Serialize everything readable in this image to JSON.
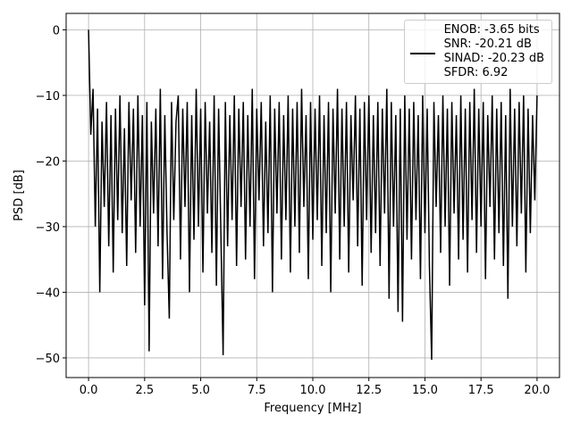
{
  "chart_data": {
    "type": "line",
    "x_label": "Frequency [MHz]",
    "y_label": "PSD [dB]",
    "xlim": [
      -1,
      21
    ],
    "ylim": [
      -53,
      2.5
    ],
    "xticks": [
      {
        "value": 0,
        "label": "0.0"
      },
      {
        "value": 2.5,
        "label": "2.5"
      },
      {
        "value": 5,
        "label": "5.0"
      },
      {
        "value": 7.5,
        "label": "7.5"
      },
      {
        "value": 10,
        "label": "10.0"
      },
      {
        "value": 12.5,
        "label": "12.5"
      },
      {
        "value": 15,
        "label": "15.0"
      },
      {
        "value": 17.5,
        "label": "17.5"
      },
      {
        "value": 20,
        "label": "20.0"
      }
    ],
    "yticks": [
      {
        "value": -50,
        "label": "−50"
      },
      {
        "value": -40,
        "label": "−40"
      },
      {
        "value": -30,
        "label": "−30"
      },
      {
        "value": -20,
        "label": "−20"
      },
      {
        "value": -10,
        "label": "−10"
      },
      0
    ],
    "grid": true,
    "legend": "upper right",
    "x": [
      0,
      0.1,
      0.2,
      0.3,
      0.4,
      0.5,
      0.6,
      0.7,
      0.8,
      0.9,
      1,
      1.1,
      1.2,
      1.3,
      1.4,
      1.5,
      1.6,
      1.7,
      1.8,
      1.9,
      2,
      2.1,
      2.2,
      2.3,
      2.4,
      2.5,
      2.6,
      2.7,
      2.8,
      2.9,
      3,
      3.1,
      3.2,
      3.3,
      3.4,
      3.5,
      3.6,
      3.7,
      3.8,
      3.9,
      4,
      4.1,
      4.2,
      4.3,
      4.4,
      4.5,
      4.6,
      4.7,
      4.8,
      4.9,
      5,
      5.1,
      5.2,
      5.3,
      5.4,
      5.5,
      5.6,
      5.7,
      5.8,
      5.9,
      6,
      6.1,
      6.2,
      6.3,
      6.4,
      6.5,
      6.6,
      6.7,
      6.8,
      6.9,
      7,
      7.1,
      7.2,
      7.3,
      7.4,
      7.5,
      7.6,
      7.7,
      7.8,
      7.9,
      8,
      8.1,
      8.2,
      8.3,
      8.4,
      8.5,
      8.6,
      8.7,
      8.8,
      8.9,
      9,
      9.1,
      9.2,
      9.3,
      9.4,
      9.5,
      9.6,
      9.7,
      9.8,
      9.9,
      10,
      10.1,
      10.2,
      10.3,
      10.4,
      10.5,
      10.6,
      10.7,
      10.8,
      10.9,
      11,
      11.1,
      11.2,
      11.3,
      11.4,
      11.5,
      11.6,
      11.7,
      11.8,
      11.9,
      12,
      12.1,
      12.2,
      12.3,
      12.4,
      12.5,
      12.6,
      12.7,
      12.8,
      12.9,
      13,
      13.1,
      13.2,
      13.3,
      13.4,
      13.5,
      13.6,
      13.7,
      13.8,
      13.9,
      14,
      14.1,
      14.2,
      14.3,
      14.4,
      14.5,
      14.6,
      14.7,
      14.8,
      14.9,
      15,
      15.1,
      15.2,
      15.3,
      15.4,
      15.5,
      15.6,
      15.7,
      15.8,
      15.9,
      16,
      16.1,
      16.2,
      16.3,
      16.4,
      16.5,
      16.6,
      16.7,
      16.8,
      16.9,
      17,
      17.1,
      17.2,
      17.3,
      17.4,
      17.5,
      17.6,
      17.7,
      17.8,
      17.9,
      18,
      18.1,
      18.2,
      18.3,
      18.4,
      18.5,
      18.6,
      18.7,
      18.8,
      18.9,
      19,
      19.1,
      19.2,
      19.3,
      19.4,
      19.5,
      19.6,
      19.7,
      19.8,
      19.9,
      20
    ],
    "series": [
      {
        "name": "ENOB: -3.65 bits\nSNR: -20.21 dB\nSINAD: -20.23 dB\nSFDR: 6.92",
        "color": "#000000",
        "values": [
          0,
          -16,
          -9,
          -30,
          -12,
          -40,
          -14,
          -27,
          -11,
          -33,
          -13,
          -37,
          -12,
          -29,
          -10,
          -31,
          -15,
          -36,
          -11,
          -26,
          -12,
          -34,
          -10,
          -30,
          -13,
          -42,
          -11,
          -49,
          -14,
          -28,
          -12,
          -33,
          -9,
          -38,
          -13,
          -31,
          -44,
          -11,
          -29,
          -14,
          -10,
          -35,
          -12,
          -27,
          -11,
          -40,
          -13,
          -32,
          -9,
          -30,
          -12,
          -37,
          -11,
          -28,
          -14,
          -34,
          -10,
          -39,
          -12,
          -31,
          -49.6,
          -11,
          -33,
          -13,
          -29,
          -10,
          -36,
          -12,
          -27,
          -11,
          -35,
          -13,
          -30,
          -9,
          -38,
          -12,
          -26,
          -11,
          -33,
          -14,
          -31,
          -10,
          -40,
          -12,
          -28,
          -11,
          -35,
          -13,
          -29,
          -10,
          -37,
          -12,
          -30,
          -11,
          -34,
          -9,
          -27,
          -13,
          -38,
          -11,
          -32,
          -12,
          -29,
          -10,
          -36,
          -13,
          -31,
          -11,
          -40,
          -12,
          -28,
          -9,
          -35,
          -12,
          -30,
          -11,
          -37,
          -13,
          -26,
          -10,
          -33,
          -12,
          -39,
          -11,
          -29,
          -10,
          -34,
          -13,
          -31,
          -11,
          -36,
          -12,
          -28,
          -9,
          -41,
          -11,
          -30,
          -13,
          -43,
          -12,
          -44.5,
          -10,
          -32,
          -12,
          -35,
          -11,
          -29,
          -13,
          -38,
          -10,
          -31,
          -12,
          -36,
          -50.3,
          -11,
          -27,
          -13,
          -34,
          -10,
          -30,
          -12,
          -39,
          -11,
          -28,
          -13,
          -35,
          -10,
          -32,
          -12,
          -37,
          -11,
          -29,
          -9,
          -34,
          -12,
          -30,
          -11,
          -38,
          -13,
          -27,
          -10,
          -35,
          -12,
          -31,
          -11,
          -36,
          -13,
          -41,
          -9,
          -30,
          -12,
          -33,
          -11,
          -28,
          -10,
          -37,
          -12,
          -31,
          -13,
          -26,
          -10
        ]
      }
    ]
  }
}
